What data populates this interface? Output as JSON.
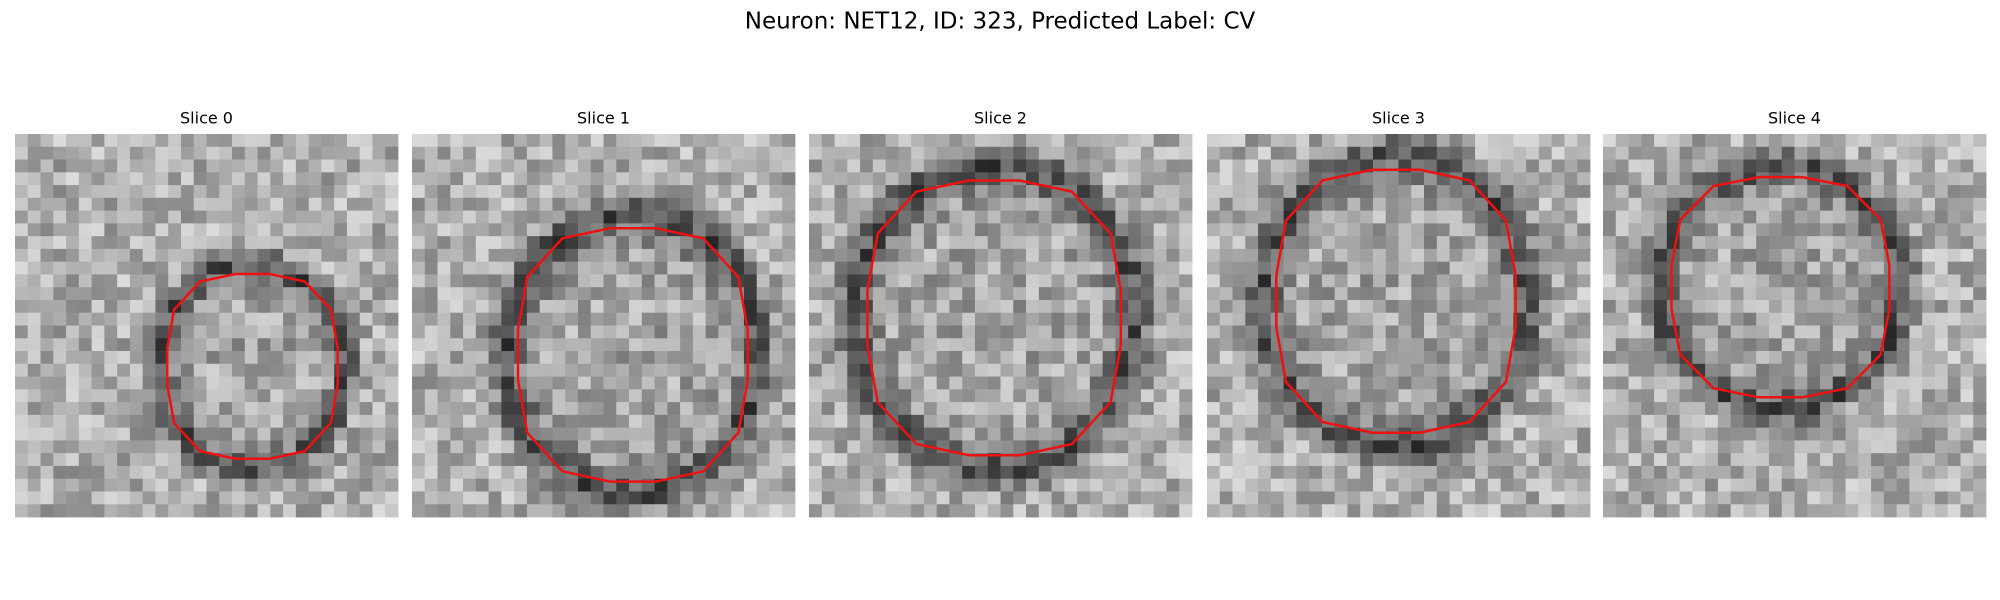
{
  "title": "Neuron: NET12, ID: 323, Predicted Label: CV",
  "panels": [
    {
      "title": "Slice 0"
    },
    {
      "title": "Slice 1"
    },
    {
      "title": "Slice 2"
    },
    {
      "title": "Slice 3"
    },
    {
      "title": "Slice 4"
    }
  ]
}
